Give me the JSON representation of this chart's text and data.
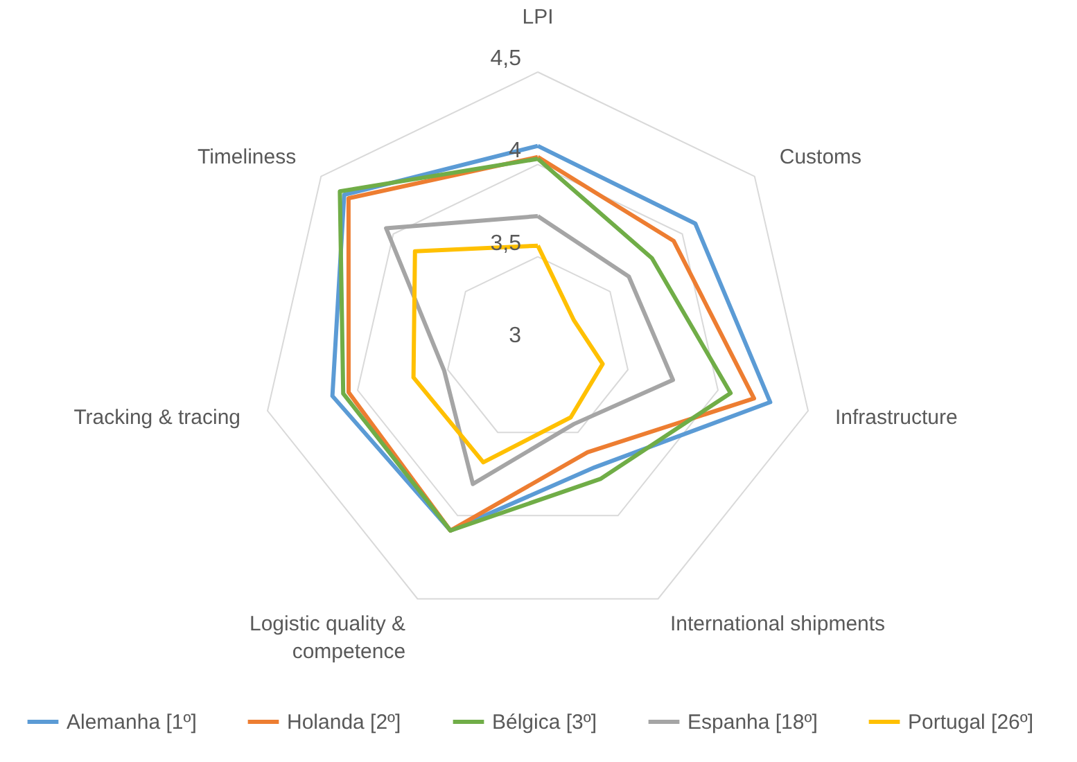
{
  "chart_data": {
    "type": "radar",
    "categories": [
      "LPI",
      "Customs",
      "Infrastructure",
      "International shipments",
      "Logistic quality & competence",
      "Tracking & tracing",
      "Timeliness"
    ],
    "series": [
      {
        "name": "Alemanha [1º]",
        "color": "#5b9bd5",
        "values": [
          4.1,
          4.09,
          4.29,
          3.71,
          4.09,
          4.14,
          4.34
        ]
      },
      {
        "name": "Holanda [2º]",
        "color": "#ed7d31",
        "values": [
          4.04,
          3.94,
          4.2,
          3.62,
          4.09,
          4.05,
          4.31
        ]
      },
      {
        "name": "Bélgica [3º]",
        "color": "#70ad47",
        "values": [
          4.03,
          3.79,
          4.07,
          3.78,
          4.09,
          4.08,
          4.37
        ]
      },
      {
        "name": "Espanha [18º]",
        "color": "#a5a5a5",
        "values": [
          3.72,
          3.63,
          3.75,
          3.45,
          3.81,
          3.52,
          4.05
        ]
      },
      {
        "name": "Portugal [26º]",
        "color": "#ffc000",
        "values": [
          3.56,
          3.25,
          3.36,
          3.41,
          3.68,
          3.69,
          3.85
        ]
      }
    ],
    "ylim": [
      3,
      4.5
    ],
    "yticks": [
      {
        "value": 3,
        "label": "3"
      },
      {
        "value": 3.5,
        "label": "3,5"
      },
      {
        "value": 4,
        "label": "4"
      },
      {
        "value": 4.5,
        "label": "4,5"
      }
    ],
    "grid": true,
    "legend": "bottom"
  }
}
